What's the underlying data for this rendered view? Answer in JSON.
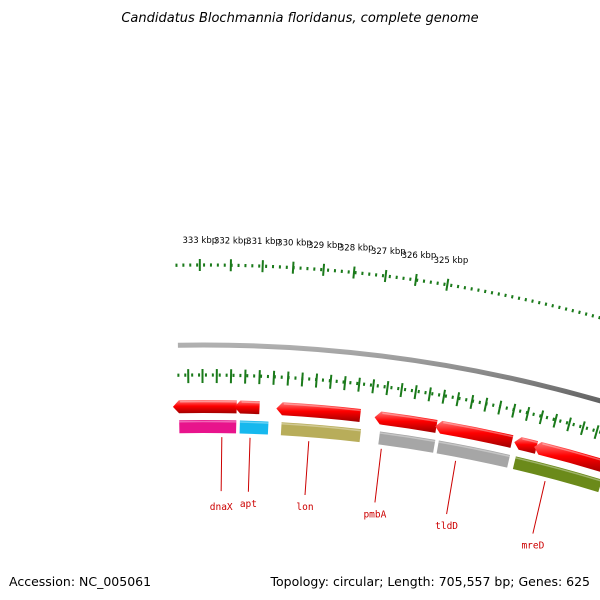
{
  "title": "Candidatus Blochmannia floridanus, complete genome",
  "footer": {
    "accession": "Accession: NC_005061",
    "summary": "Topology: circular; Length: 705,557 bp; Genes: 625"
  },
  "ruler": {
    "color": "#1a7a1a",
    "labels": [
      "333 kbp",
      "332 kbp",
      "331 kbp",
      "330 kbp",
      "329 kbp",
      "328 kbp",
      "327 kbp",
      "326 kbp",
      "325 kbp"
    ]
  },
  "backbone_color": "#7a7a7a",
  "genes": [
    {
      "name": "dnaX",
      "color": "#e8148c"
    },
    {
      "name": "apt",
      "color": "#16b8ee"
    },
    {
      "name": "lon",
      "color": "#b8ad5a"
    },
    {
      "name": "pmbA",
      "color": "#a6a6a6"
    },
    {
      "name": "tldD",
      "color": "#a6a6a6"
    },
    {
      "name": "mreD",
      "color": "#6b8a1a"
    }
  ],
  "strand_color": "#ee1111"
}
